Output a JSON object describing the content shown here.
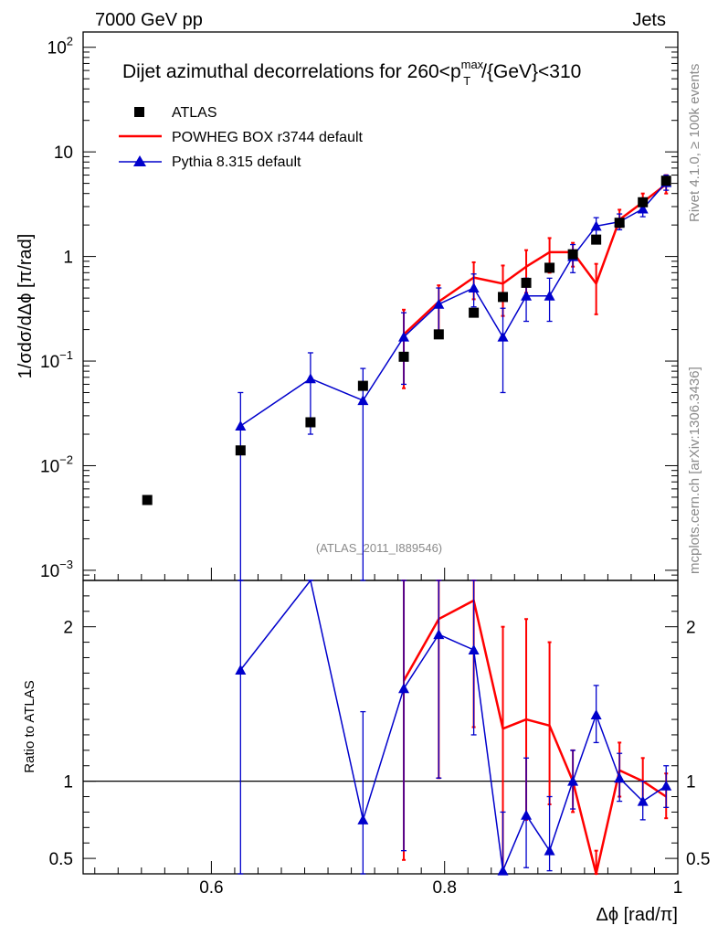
{
  "header": {
    "left": "7000 GeV pp",
    "right": "Jets"
  },
  "side_text": {
    "rivet": "Rivet 4.1.0, ≥ 100k events",
    "mcplots": "mcplots.cern.ch [arXiv:1306.3436]"
  },
  "watermark": "(ATLAS_2011_I889546)",
  "chart_data": {
    "type": "scatter",
    "title_main": "Dijet azimuthal decorrelations for 260<p",
    "title_sup": "max",
    "title_sub": "T",
    "title_tail": "/{GeV}<310",
    "xlabel_main": "Δϕ [rad/π]",
    "upper": {
      "ylabel": "1/σdσ/dΔϕ [π/rad]",
      "yscale": "log",
      "ylim": [
        0.0008,
        140
      ],
      "xlim": [
        0.49,
        1.0
      ],
      "ytick_labels": [
        {
          "value": 0.001,
          "base": "10",
          "exp": "−3"
        },
        {
          "value": 0.01,
          "base": "10",
          "exp": "−2"
        },
        {
          "value": 0.1,
          "base": "10",
          "exp": "−1"
        },
        {
          "value": 1,
          "base": "1",
          "exp": ""
        },
        {
          "value": 10,
          "base": "10",
          "exp": ""
        },
        {
          "value": 100,
          "base": "10",
          "exp": "2"
        }
      ]
    },
    "lower": {
      "ylabel": "Ratio to ATLAS",
      "ylim": [
        0.4,
        2.3
      ],
      "ytick_labels": [
        {
          "value": 0.5,
          "label": "0.5"
        },
        {
          "value": 1,
          "label": "1"
        },
        {
          "value": 2,
          "label": "2"
        }
      ],
      "reference": 1.0
    },
    "xtick_labels": [
      {
        "value": 0.6,
        "label": "0.6"
      },
      {
        "value": 0.8,
        "label": "0.8"
      },
      {
        "value": 1.0,
        "label": "1"
      }
    ],
    "legend": [
      {
        "label": "ATLAS",
        "style": "square",
        "color": "#000000"
      },
      {
        "label": "POWHEG BOX r3744 default",
        "style": "line",
        "color": "#ff0000"
      },
      {
        "label": "Pythia 8.315 default",
        "style": "line-triangle",
        "color": "#0000cc"
      }
    ],
    "series": [
      {
        "name": "ATLAS",
        "color": "#000000",
        "points": [
          {
            "x": 0.545,
            "y": 0.0047
          },
          {
            "x": 0.625,
            "y": 0.014
          },
          {
            "x": 0.685,
            "y": 0.026
          },
          {
            "x": 0.73,
            "y": 0.058
          },
          {
            "x": 0.765,
            "y": 0.11
          },
          {
            "x": 0.795,
            "y": 0.18
          },
          {
            "x": 0.825,
            "y": 0.29
          },
          {
            "x": 0.85,
            "y": 0.41
          },
          {
            "x": 0.87,
            "y": 0.56
          },
          {
            "x": 0.89,
            "y": 0.78
          },
          {
            "x": 0.91,
            "y": 1.05
          },
          {
            "x": 0.93,
            "y": 1.45
          },
          {
            "x": 0.95,
            "y": 2.1
          },
          {
            "x": 0.97,
            "y": 3.3
          },
          {
            "x": 0.99,
            "y": 5.3
          }
        ]
      },
      {
        "name": "POWHEG BOX r3744 default",
        "color": "#ff0000",
        "points": [
          {
            "x": 0.765,
            "y": 0.18,
            "lo": 0.055,
            "hi": 0.31
          },
          {
            "x": 0.795,
            "y": 0.37,
            "lo": 0.19,
            "hi": 0.53
          },
          {
            "x": 0.825,
            "y": 0.63,
            "lo": 0.39,
            "hi": 0.88
          },
          {
            "x": 0.85,
            "y": 0.55,
            "lo": 0.27,
            "hi": 0.82
          },
          {
            "x": 0.87,
            "y": 0.8,
            "lo": 0.45,
            "hi": 1.15
          },
          {
            "x": 0.89,
            "y": 1.1,
            "lo": 0.7,
            "hi": 1.5
          },
          {
            "x": 0.91,
            "y": 1.1,
            "lo": 0.8,
            "hi": 1.35
          },
          {
            "x": 0.93,
            "y": 0.55,
            "lo": 0.28,
            "hi": 0.85
          },
          {
            "x": 0.95,
            "y": 2.25,
            "lo": 1.9,
            "hi": 2.8
          },
          {
            "x": 0.97,
            "y": 3.3,
            "lo": 2.8,
            "hi": 4.0
          },
          {
            "x": 0.99,
            "y": 4.9,
            "lo": 4.0,
            "hi": 6.0
          }
        ],
        "ratio": [
          {
            "x": 0.765,
            "y": 1.65,
            "lo": 0.49,
            "hi": 2.3
          },
          {
            "x": 0.795,
            "y": 2.05,
            "lo": 1.02,
            "hi": 2.3
          },
          {
            "x": 0.825,
            "y": 2.17,
            "lo": 1.35,
            "hi": 2.3
          },
          {
            "x": 0.85,
            "y": 1.34,
            "lo": 0.4,
            "hi": 2.0
          },
          {
            "x": 0.87,
            "y": 1.4,
            "lo": 0.75,
            "hi": 2.05
          },
          {
            "x": 0.89,
            "y": 1.36,
            "lo": 0.85,
            "hi": 1.9
          },
          {
            "x": 0.91,
            "y": 1.0,
            "lo": 0.8,
            "hi": 1.2
          },
          {
            "x": 0.93,
            "y": 0.4,
            "lo": 0.4,
            "hi": 0.55
          },
          {
            "x": 0.95,
            "y": 1.07,
            "lo": 0.9,
            "hi": 1.25
          },
          {
            "x": 0.97,
            "y": 1.0,
            "lo": 0.85,
            "hi": 1.15
          },
          {
            "x": 0.99,
            "y": 0.9,
            "lo": 0.76,
            "hi": 1.05
          }
        ]
      },
      {
        "name": "Pythia 8.315 default",
        "color": "#0000cc",
        "points": [
          {
            "x": 0.625,
            "y": 0.024,
            "lo": 0.0008,
            "hi": 0.05
          },
          {
            "x": 0.685,
            "y": 0.068,
            "lo": 0.02,
            "hi": 0.12
          },
          {
            "x": 0.73,
            "y": 0.042,
            "lo": 0.0008,
            "hi": 0.085
          },
          {
            "x": 0.765,
            "y": 0.17,
            "lo": 0.06,
            "hi": 0.29
          },
          {
            "x": 0.795,
            "y": 0.35,
            "lo": 0.18,
            "hi": 0.5
          },
          {
            "x": 0.825,
            "y": 0.5,
            "lo": 0.33,
            "hi": 0.68
          },
          {
            "x": 0.85,
            "y": 0.17,
            "lo": 0.05,
            "hi": 0.32
          },
          {
            "x": 0.87,
            "y": 0.42,
            "lo": 0.24,
            "hi": 0.62
          },
          {
            "x": 0.89,
            "y": 0.42,
            "lo": 0.24,
            "hi": 0.62
          },
          {
            "x": 0.91,
            "y": 1.0,
            "lo": 0.7,
            "hi": 1.3
          },
          {
            "x": 0.93,
            "y": 1.95,
            "lo": 1.55,
            "hi": 2.35
          },
          {
            "x": 0.95,
            "y": 2.15,
            "lo": 1.8,
            "hi": 2.55
          },
          {
            "x": 0.97,
            "y": 2.85,
            "lo": 2.4,
            "hi": 3.3
          },
          {
            "x": 0.99,
            "y": 5.1,
            "lo": 4.3,
            "hi": 6.0
          }
        ],
        "ratio": [
          {
            "x": 0.625,
            "y": 1.72,
            "lo": 0.4,
            "hi": 2.3
          },
          {
            "x": 0.685,
            "y": 2.3,
            "lo": 2.3,
            "hi": 2.3
          },
          {
            "x": 0.73,
            "y": 0.75,
            "lo": 0.4,
            "hi": 1.45
          },
          {
            "x": 0.765,
            "y": 1.6,
            "lo": 0.55,
            "hi": 2.3
          },
          {
            "x": 0.795,
            "y": 1.95,
            "lo": 1.02,
            "hi": 2.3
          },
          {
            "x": 0.825,
            "y": 1.85,
            "lo": 1.3,
            "hi": 2.3
          },
          {
            "x": 0.85,
            "y": 0.42,
            "lo": 0.4,
            "hi": 0.8
          },
          {
            "x": 0.87,
            "y": 0.78,
            "lo": 0.44,
            "hi": 1.15
          },
          {
            "x": 0.89,
            "y": 0.55,
            "lo": 0.42,
            "hi": 0.9
          },
          {
            "x": 0.91,
            "y": 1.0,
            "lo": 0.82,
            "hi": 1.2
          },
          {
            "x": 0.93,
            "y": 1.43,
            "lo": 1.25,
            "hi": 1.62
          },
          {
            "x": 0.95,
            "y": 1.02,
            "lo": 0.87,
            "hi": 1.18
          },
          {
            "x": 0.97,
            "y": 0.87,
            "lo": 0.75,
            "hi": 1.0
          },
          {
            "x": 0.99,
            "y": 0.97,
            "lo": 0.83,
            "hi": 1.1
          }
        ]
      }
    ]
  }
}
